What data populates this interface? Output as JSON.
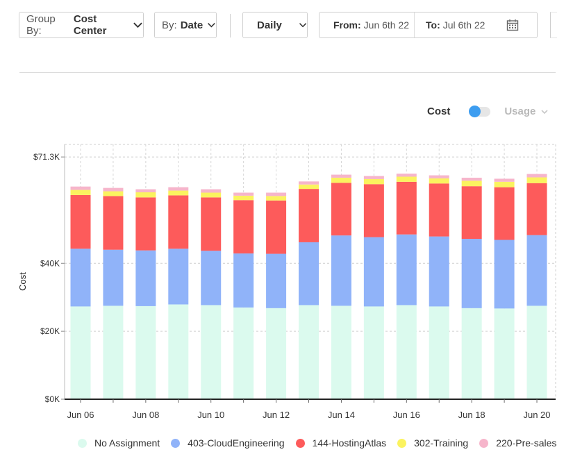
{
  "toolbar": {
    "group_by_key": "Group By:",
    "group_by_value": "Cost Center",
    "by_key": "By:",
    "by_value": "Date",
    "granularity": "Daily",
    "from_key": "From:",
    "from_value": "Jun 6th 22",
    "to_key": "To:",
    "to_value": "Jul 6th 22"
  },
  "view_toggle": {
    "cost_label": "Cost",
    "usage_label": "Usage",
    "selected": "Cost",
    "active_color": "#3d9df0"
  },
  "chart_data": {
    "type": "bar",
    "stacked": true,
    "ylabel": "Cost",
    "xlabel": "",
    "ylim": [
      0,
      75000
    ],
    "ytick_values": [
      0,
      20000,
      40000,
      71300
    ],
    "ytick_labels": [
      "$0K",
      "$20K",
      "$40K",
      "$71.3K"
    ],
    "x": [
      "Jun 06",
      "Jun 07",
      "Jun 08",
      "Jun 09",
      "Jun 10",
      "Jun 11",
      "Jun 12",
      "Jun 13",
      "Jun 14",
      "Jun 15",
      "Jun 16",
      "Jun 17",
      "Jun 18",
      "Jun 19",
      "Jun 20"
    ],
    "xtick_labels": [
      "Jun 06",
      "",
      "Jun 08",
      "",
      "Jun 10",
      "",
      "Jun 12",
      "",
      "Jun 14",
      "",
      "Jun 16",
      "",
      "Jun 18",
      "",
      "Jun 20"
    ],
    "series": [
      {
        "name": "No Assignment",
        "color": "#dbfaee",
        "values": [
          27300,
          27500,
          27400,
          27900,
          27700,
          27000,
          26800,
          27700,
          27500,
          27300,
          27700,
          27300,
          26800,
          26700,
          27500
        ]
      },
      {
        "name": "403-CloudEngineering",
        "color": "#90b3f9",
        "values": [
          17000,
          16500,
          16400,
          16400,
          16000,
          15900,
          16000,
          18500,
          20700,
          20400,
          20800,
          20600,
          20400,
          20200,
          20800
        ]
      },
      {
        "name": "144-HostingAtlas",
        "color": "#fd5b5b",
        "values": [
          15800,
          15800,
          15600,
          15700,
          15700,
          15700,
          15700,
          15700,
          15500,
          15600,
          15500,
          15600,
          15500,
          15500,
          15300
        ]
      },
      {
        "name": "302-Training",
        "color": "#fbf35f",
        "values": [
          1500,
          1400,
          1500,
          1400,
          1400,
          1300,
          1300,
          1300,
          1500,
          1500,
          1500,
          1500,
          1600,
          1600,
          1700
        ]
      },
      {
        "name": "220-Pre-sales",
        "color": "#f6b5cb",
        "values": [
          1000,
          1000,
          900,
          1000,
          1000,
          900,
          1000,
          900,
          900,
          900,
          900,
          900,
          900,
          900,
          1000
        ]
      }
    ],
    "grid": true,
    "legend_position": "bottom"
  }
}
